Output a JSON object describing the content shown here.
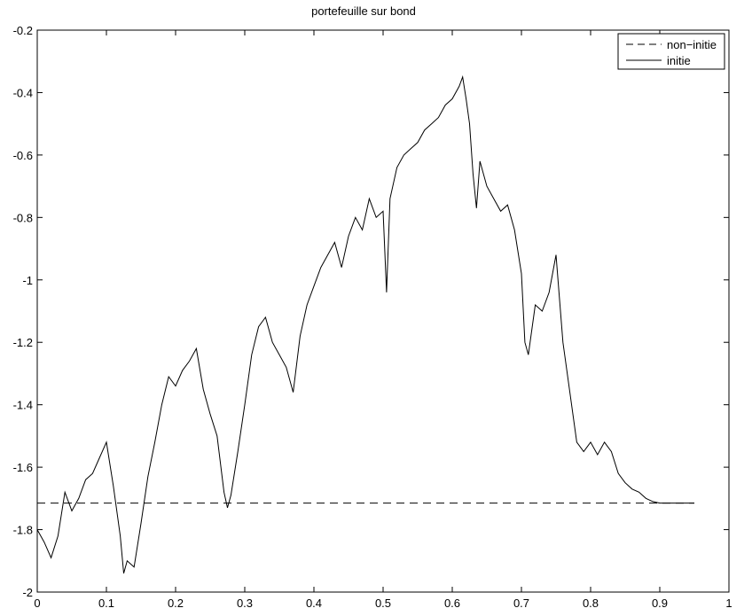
{
  "chart_data": {
    "type": "line",
    "title": "portefeuille sur bond",
    "xlabel": "",
    "ylabel": "",
    "xlim": [
      0,
      1
    ],
    "ylim": [
      -2,
      -0.2
    ],
    "xticks": [
      "0",
      "0.1",
      "0.2",
      "0.3",
      "0.4",
      "0.5",
      "0.6",
      "0.7",
      "0.8",
      "0.9",
      "1"
    ],
    "yticks": [
      "-0.2",
      "-0.4",
      "-0.6",
      "-0.8",
      "-1",
      "-1.2",
      "-1.4",
      "-1.6",
      "-1.8",
      "-2"
    ],
    "grid": false,
    "legend_position": "top-right",
    "series": [
      {
        "name": "non−initie",
        "style": "dashed",
        "color": "#000000",
        "x": [
          0,
          0.95
        ],
        "y": [
          -1.715,
          -1.715
        ]
      },
      {
        "name": "initie",
        "style": "solid",
        "color": "#000000",
        "x": [
          0,
          0.01,
          0.02,
          0.03,
          0.04,
          0.05,
          0.06,
          0.07,
          0.08,
          0.09,
          0.1,
          0.11,
          0.12,
          0.125,
          0.13,
          0.14,
          0.15,
          0.16,
          0.17,
          0.18,
          0.19,
          0.2,
          0.21,
          0.22,
          0.23,
          0.24,
          0.25,
          0.26,
          0.27,
          0.275,
          0.28,
          0.29,
          0.3,
          0.31,
          0.32,
          0.33,
          0.34,
          0.35,
          0.36,
          0.37,
          0.38,
          0.39,
          0.4,
          0.41,
          0.42,
          0.43,
          0.44,
          0.45,
          0.46,
          0.47,
          0.48,
          0.49,
          0.5,
          0.505,
          0.51,
          0.52,
          0.53,
          0.54,
          0.55,
          0.56,
          0.57,
          0.58,
          0.59,
          0.6,
          0.61,
          0.615,
          0.62,
          0.625,
          0.63,
          0.635,
          0.64,
          0.65,
          0.66,
          0.67,
          0.68,
          0.69,
          0.7,
          0.705,
          0.71,
          0.72,
          0.73,
          0.74,
          0.75,
          0.76,
          0.77,
          0.78,
          0.79,
          0.8,
          0.81,
          0.82,
          0.83,
          0.84,
          0.85,
          0.86,
          0.87,
          0.88,
          0.89,
          0.9,
          0.92,
          0.95
        ],
        "y": [
          -1.8,
          -1.84,
          -1.89,
          -1.82,
          -1.68,
          -1.74,
          -1.7,
          -1.64,
          -1.62,
          -1.57,
          -1.52,
          -1.66,
          -1.82,
          -1.94,
          -1.9,
          -1.92,
          -1.78,
          -1.63,
          -1.52,
          -1.4,
          -1.31,
          -1.34,
          -1.29,
          -1.26,
          -1.22,
          -1.35,
          -1.43,
          -1.5,
          -1.68,
          -1.73,
          -1.69,
          -1.55,
          -1.4,
          -1.24,
          -1.15,
          -1.12,
          -1.2,
          -1.24,
          -1.28,
          -1.36,
          -1.18,
          -1.08,
          -1.02,
          -0.96,
          -0.92,
          -0.88,
          -0.96,
          -0.86,
          -0.8,
          -0.84,
          -0.74,
          -0.8,
          -0.78,
          -1.04,
          -0.74,
          -0.64,
          -0.6,
          -0.58,
          -0.56,
          -0.52,
          -0.5,
          -0.48,
          -0.44,
          -0.42,
          -0.38,
          -0.35,
          -0.42,
          -0.5,
          -0.66,
          -0.77,
          -0.62,
          -0.7,
          -0.74,
          -0.78,
          -0.76,
          -0.84,
          -0.98,
          -1.2,
          -1.24,
          -1.08,
          -1.1,
          -1.04,
          -0.92,
          -1.2,
          -1.36,
          -1.52,
          -1.55,
          -1.52,
          -1.56,
          -1.52,
          -1.55,
          -1.62,
          -1.65,
          -1.67,
          -1.68,
          -1.7,
          -1.71,
          -1.715,
          -1.715,
          -1.715
        ]
      }
    ]
  }
}
